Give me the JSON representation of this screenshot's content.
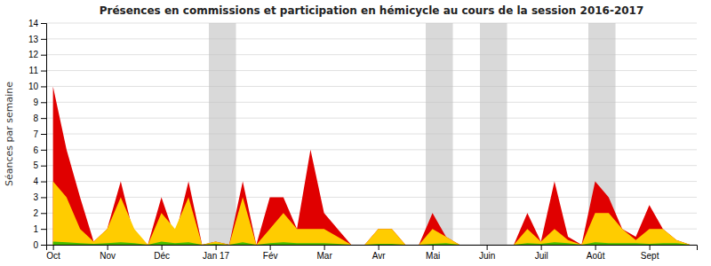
{
  "chart_data": {
    "type": "area",
    "title": "Présences en commissions et participation en hémicycle au cours de la session 2016-2017",
    "ylabel": "Séances par semaine",
    "categories": [
      "Oct",
      null,
      null,
      null,
      "Nov",
      null,
      null,
      null,
      "Déc",
      null,
      null,
      null,
      "Jan 17",
      null,
      null,
      null,
      "Fév",
      null,
      null,
      null,
      "Mar",
      null,
      null,
      null,
      "Avr",
      null,
      null,
      null,
      "Mai",
      null,
      null,
      null,
      "Juin",
      null,
      null,
      null,
      "Juil",
      null,
      null,
      null,
      "Août",
      null,
      null,
      null,
      "Sept",
      null,
      null,
      null
    ],
    "series": [
      {
        "color": "#e00000",
        "values": [
          10,
          6,
          3,
          0.2,
          1,
          4,
          0.5,
          0,
          3,
          0.5,
          4,
          0,
          0.2,
          0,
          4,
          0,
          3,
          3,
          1,
          6,
          2,
          1,
          0,
          0,
          1,
          1,
          0,
          0,
          2,
          0.5,
          0,
          0,
          0,
          0,
          0,
          2,
          0.2,
          4,
          0.5,
          0,
          4,
          3,
          1,
          0.5,
          2.5,
          1,
          0.3,
          0
        ]
      },
      {
        "color": "#ffcc00",
        "values": [
          4,
          3,
          1,
          0.2,
          1,
          3,
          1,
          0,
          2,
          1,
          3,
          0,
          0.2,
          0,
          3,
          0,
          1,
          2,
          1,
          1,
          1,
          0.5,
          0,
          0,
          1,
          1,
          0,
          0,
          1,
          0.5,
          0,
          0,
          0,
          0,
          0,
          1,
          0.2,
          1,
          0.3,
          0,
          2,
          2,
          1,
          0.3,
          1,
          1,
          0.3,
          0
        ]
      },
      {
        "color": "#44bb00",
        "values": [
          0.2,
          0.15,
          0.1,
          0.05,
          0.1,
          0.15,
          0.1,
          0,
          0.2,
          0.1,
          0.15,
          0,
          0.05,
          0,
          0.15,
          0,
          0.1,
          0.15,
          0.1,
          0.1,
          0.1,
          0.05,
          0,
          0,
          0.05,
          0.05,
          0,
          0,
          0.05,
          0.1,
          0,
          0,
          0,
          0,
          0,
          0.1,
          0.05,
          0.15,
          0.1,
          0,
          0.15,
          0.1,
          0.1,
          0.1,
          0.05,
          0.1,
          0.1,
          0
        ]
      }
    ],
    "recess_bands": [
      [
        11.5,
        13.5
      ],
      [
        27.5,
        29.5
      ],
      [
        31.5,
        33.5
      ],
      [
        39.5,
        41.5
      ]
    ],
    "ylim": [
      0,
      14
    ],
    "yticks": [
      0,
      1,
      2,
      3,
      4,
      5,
      6,
      7,
      8,
      9,
      10,
      11,
      12,
      13,
      14
    ],
    "grid": true
  }
}
